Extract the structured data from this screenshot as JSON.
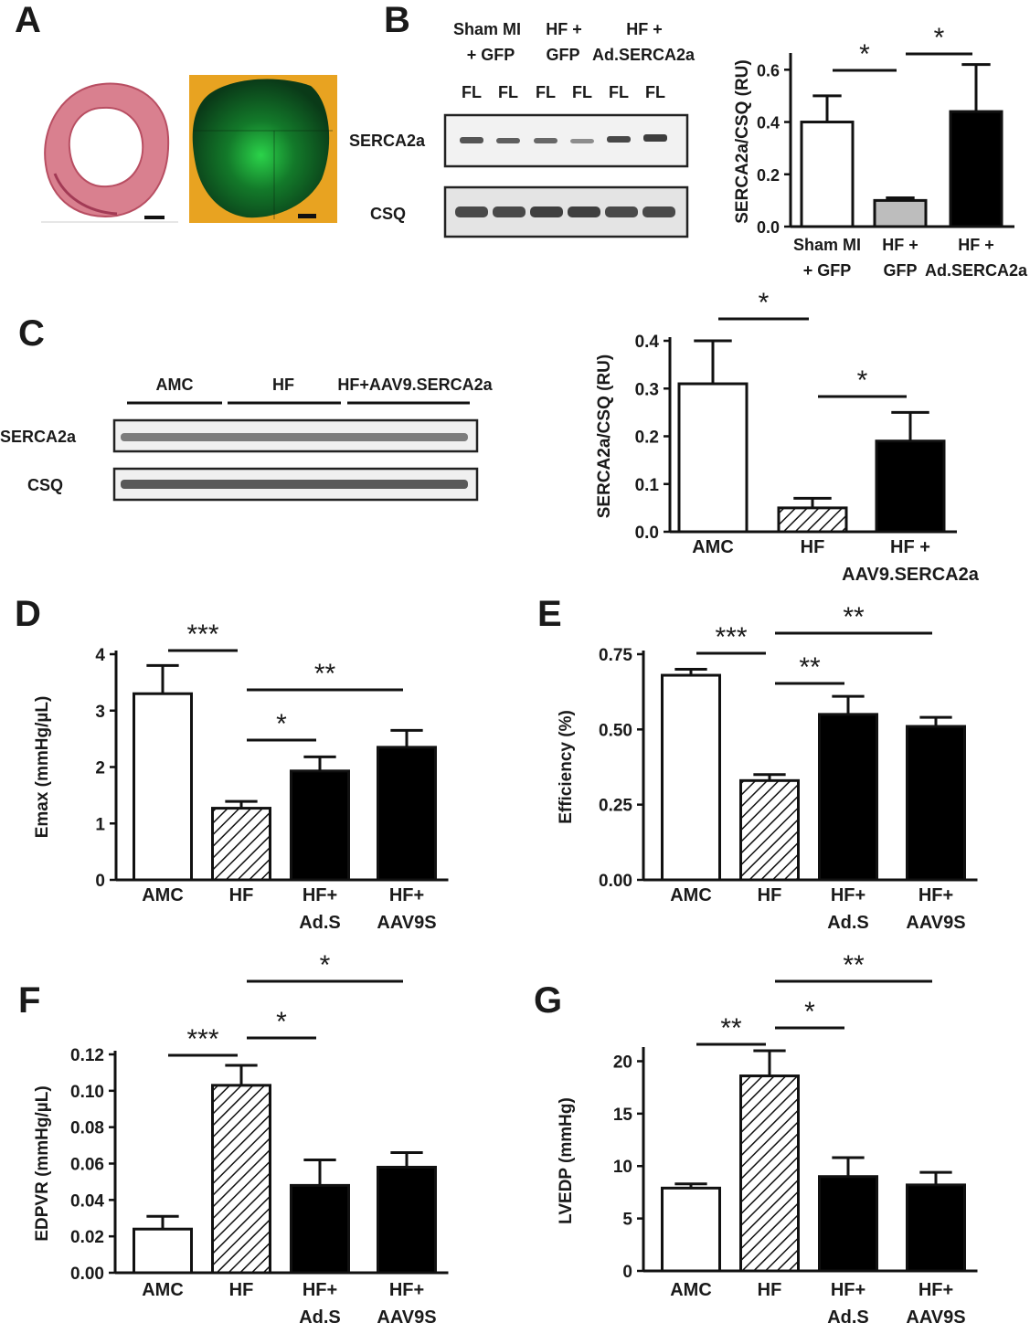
{
  "panel_labels": [
    "A",
    "B",
    "C",
    "D",
    "E",
    "F",
    "G"
  ],
  "panel_a": {
    "histology_name": "heart-cross-section-stain",
    "fluorescence_name": "heart-gfp-fluorescence"
  },
  "blot_b": {
    "groups": [
      {
        "line1": "Sham MI",
        "line2": "+ GFP"
      },
      {
        "line1": "HF +",
        "line2": "GFP"
      },
      {
        "line1": "HF +",
        "line2": "Ad.SERCA2a"
      }
    ],
    "lane_labels": [
      "FL",
      "FL",
      "FL",
      "FL",
      "FL",
      "FL"
    ],
    "rows": [
      "SERCA2a",
      "CSQ"
    ]
  },
  "blot_c": {
    "groups": [
      "AMC",
      "HF",
      "HF+AAV9.SERCA2a"
    ],
    "rows": [
      "SERCA2a",
      "CSQ"
    ]
  },
  "chart_data": [
    {
      "id": "B",
      "type": "bar",
      "categories": [
        [
          "Sham MI",
          "+ GFP"
        ],
        [
          "HF +",
          "GFP"
        ],
        [
          "HF +",
          "Ad.SERCA2a"
        ]
      ],
      "values": [
        0.4,
        0.1,
        0.44
      ],
      "errors": [
        0.1,
        0.01,
        0.18
      ],
      "fills": [
        "white",
        "#bdbdbd",
        "black"
      ],
      "ylabel": "SERCA2a/CSQ (RU)",
      "ylim": [
        0,
        0.65
      ],
      "yticks": [
        "0.0",
        "0.2",
        "0.4",
        "0.6"
      ],
      "significance": [
        {
          "from": 0,
          "to": 1,
          "label": "*"
        },
        {
          "from": 1,
          "to": 2,
          "label": "*"
        }
      ]
    },
    {
      "id": "C",
      "type": "bar",
      "categories": [
        [
          "AMC"
        ],
        [
          "HF"
        ],
        [
          "HF +",
          "AAV9.SERCA2a"
        ]
      ],
      "values": [
        0.31,
        0.05,
        0.19
      ],
      "errors": [
        0.09,
        0.02,
        0.06
      ],
      "fills": [
        "white",
        "hatch",
        "black"
      ],
      "ylabel": "SERCA2a/CSQ (RU)",
      "ylim": [
        0,
        0.4
      ],
      "yticks": [
        "0.0",
        "0.1",
        "0.2",
        "0.3",
        "0.4"
      ],
      "significance": [
        {
          "from": 0,
          "to": 1,
          "label": "*"
        },
        {
          "from": 1,
          "to": 2,
          "label": "*"
        }
      ]
    },
    {
      "id": "D",
      "type": "bar",
      "categories": [
        [
          "AMC"
        ],
        [
          "HF"
        ],
        [
          "HF+",
          "Ad.S"
        ],
        [
          "HF+",
          "AAV9S"
        ]
      ],
      "values": [
        3.3,
        1.27,
        1.93,
        2.35
      ],
      "errors": [
        0.5,
        0.12,
        0.25,
        0.3
      ],
      "fills": [
        "white",
        "hatch",
        "black",
        "black"
      ],
      "ylabel": "Emax (mmHg/µL)",
      "ylim": [
        0,
        4
      ],
      "yticks": [
        "0",
        "1",
        "2",
        "3",
        "4"
      ],
      "significance": [
        {
          "from": 0,
          "to": 1,
          "label": "***"
        },
        {
          "from": 1,
          "to": 2,
          "label": "*"
        },
        {
          "from": 1,
          "to": 3,
          "label": "**"
        }
      ]
    },
    {
      "id": "E",
      "type": "bar",
      "categories": [
        [
          "AMC"
        ],
        [
          "HF"
        ],
        [
          "HF+",
          "Ad.S"
        ],
        [
          "HF+",
          "AAV9S"
        ]
      ],
      "values": [
        0.68,
        0.33,
        0.55,
        0.51
      ],
      "errors": [
        0.02,
        0.02,
        0.06,
        0.03
      ],
      "fills": [
        "white",
        "hatch",
        "black",
        "black"
      ],
      "ylabel": "Efficiency (%)",
      "ylim": [
        0,
        0.75
      ],
      "yticks": [
        "0.00",
        "0.25",
        "0.50",
        "0.75"
      ],
      "significance": [
        {
          "from": 0,
          "to": 1,
          "label": "***"
        },
        {
          "from": 1,
          "to": 2,
          "label": "**"
        },
        {
          "from": 1,
          "to": 3,
          "label": "**"
        }
      ]
    },
    {
      "id": "F",
      "type": "bar",
      "categories": [
        [
          "AMC"
        ],
        [
          "HF"
        ],
        [
          "HF+",
          "Ad.S"
        ],
        [
          "HF+",
          "AAV9S"
        ]
      ],
      "values": [
        0.024,
        0.103,
        0.048,
        0.058
      ],
      "errors": [
        0.007,
        0.011,
        0.014,
        0.008
      ],
      "fills": [
        "white",
        "hatch",
        "black",
        "black"
      ],
      "ylabel": "EDPVR (mmHg/µL)",
      "ylim": [
        0,
        0.12
      ],
      "yticks": [
        "0.00",
        "0.02",
        "0.04",
        "0.06",
        "0.08",
        "0.10",
        "0.12"
      ],
      "significance": [
        {
          "from": 0,
          "to": 1,
          "label": "***"
        },
        {
          "from": 1,
          "to": 2,
          "label": "*"
        },
        {
          "from": 1,
          "to": 3,
          "label": "*"
        }
      ]
    },
    {
      "id": "G",
      "type": "bar",
      "categories": [
        [
          "AMC"
        ],
        [
          "HF"
        ],
        [
          "HF+",
          "Ad.S"
        ],
        [
          "HF+",
          "AAV9S"
        ]
      ],
      "values": [
        7.9,
        18.6,
        9.0,
        8.2
      ],
      "errors": [
        0.4,
        2.4,
        1.8,
        1.2
      ],
      "fills": [
        "white",
        "hatch",
        "black",
        "black"
      ],
      "ylabel": "LVEDP (mmHg)",
      "ylim": [
        0,
        21
      ],
      "yticks": [
        "0",
        "5",
        "10",
        "15",
        "20"
      ],
      "significance": [
        {
          "from": 0,
          "to": 1,
          "label": "**"
        },
        {
          "from": 1,
          "to": 2,
          "label": "*"
        },
        {
          "from": 1,
          "to": 3,
          "label": "**"
        }
      ]
    }
  ]
}
